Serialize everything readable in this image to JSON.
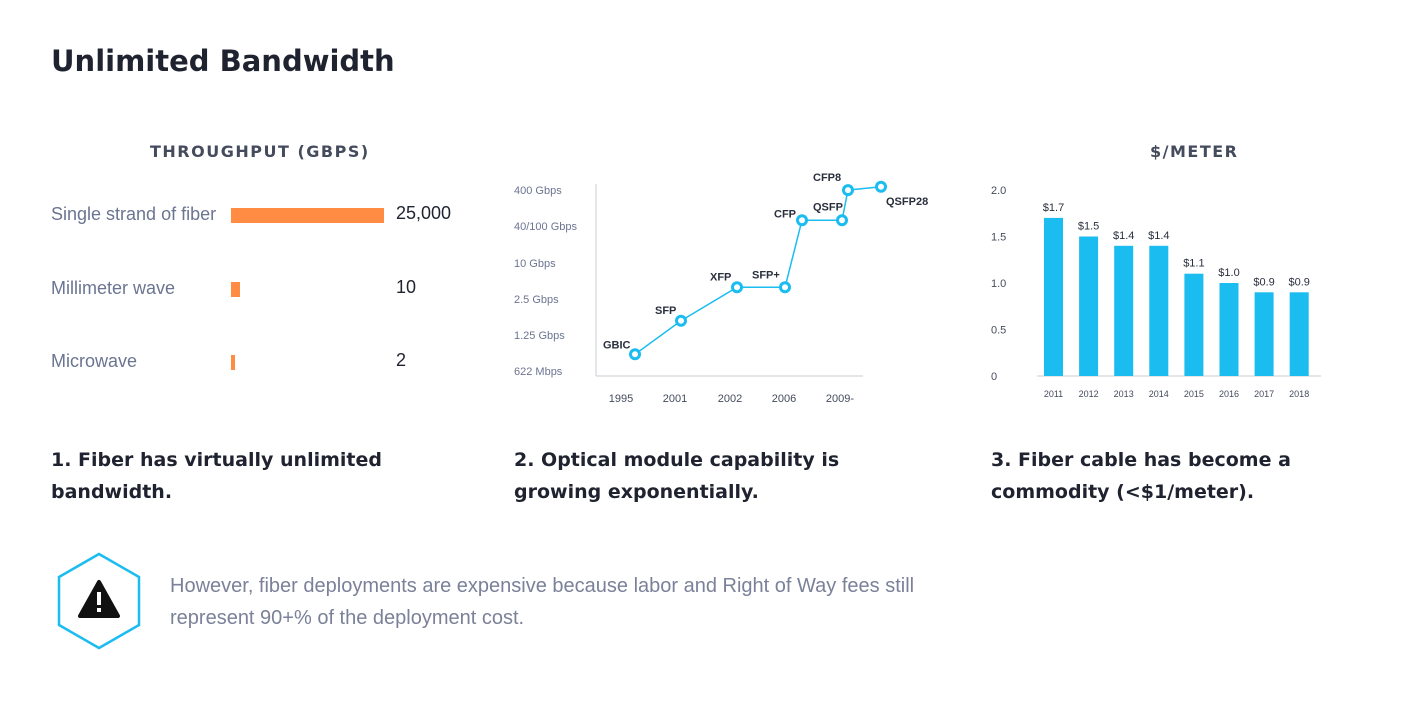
{
  "page": {
    "title": "Unlimited Bandwidth"
  },
  "colors": {
    "accent_orange": "#ff8c42",
    "accent_blue": "#1bbcf0",
    "text_dark": "#1f2330",
    "text_muted": "#7a8199"
  },
  "chart_data": [
    {
      "type": "bar",
      "orientation": "horizontal",
      "title": "THROUGHPUT (GBPS)",
      "categories": [
        "Single strand of fiber",
        "Millimeter wave",
        "Microwave"
      ],
      "values": [
        25000,
        10,
        2
      ],
      "value_labels": [
        "25,000",
        "10",
        "2"
      ],
      "display_fraction": [
        1.0,
        0.06,
        0.02
      ],
      "grid": false,
      "legend": "none"
    },
    {
      "type": "line",
      "title": "",
      "y_categories": [
        "622 Mbps",
        "1.25 Gbps",
        "2.5 Gbps",
        "10 Gbps",
        "40/100 Gbps",
        "400 Gbps"
      ],
      "x_tick_labels": [
        "1995",
        "2001",
        "2002",
        "2006",
        "2009-"
      ],
      "points": [
        {
          "label": "GBIC",
          "x": 1995,
          "y": "622 Mbps",
          "y_rank": 0.5
        },
        {
          "label": "SFP",
          "x": 2001,
          "y": "1.25 Gbps",
          "y_rank": 1.5
        },
        {
          "label": "XFP",
          "x": 2002,
          "y": "2.5 Gbps",
          "y_rank": 2.5
        },
        {
          "label": "SFP+",
          "x": 2006,
          "y": "2.5 Gbps",
          "y_rank": 2.5
        },
        {
          "label": "CFP",
          "x": 2007,
          "y": "40/100 Gbps",
          "y_rank": 4.5
        },
        {
          "label": "QSFP",
          "x": 2009,
          "y": "40/100 Gbps",
          "y_rank": 4.5
        },
        {
          "label": "CFP8",
          "x": 2010,
          "y": "400 Gbps",
          "y_rank": 5.4
        },
        {
          "label": "QSFP28",
          "x": 2011,
          "y": "400 Gbps",
          "y_rank": 5.5
        }
      ],
      "grid": false,
      "legend": "none"
    },
    {
      "type": "bar",
      "title": "$/METER",
      "categories": [
        "2011",
        "2012",
        "2013",
        "2014",
        "2015",
        "2016",
        "2017",
        "2018"
      ],
      "values": [
        1.7,
        1.5,
        1.4,
        1.4,
        1.1,
        1.0,
        0.9,
        0.9
      ],
      "value_labels": [
        "$1.7",
        "$1.5",
        "$1.4",
        "$1.4",
        "$1.1",
        "$1.0",
        "$0.9",
        "$0.9"
      ],
      "y_ticks": [
        "0",
        "0.5",
        "1.0",
        "1.5",
        "2.0"
      ],
      "ylim": [
        0,
        2.0
      ],
      "grid": false,
      "legend": "none"
    }
  ],
  "captions": [
    "1. Fiber has virtually unlimited bandwidth.",
    "2. Optical module capability is growing exponentially.",
    "3. Fiber cable has become a commodity (<$1/meter)."
  ],
  "note": {
    "icon": "warning-icon",
    "text": "However, fiber deployments are expensive because labor and Right of Way fees still represent 90+% of the deployment cost."
  }
}
